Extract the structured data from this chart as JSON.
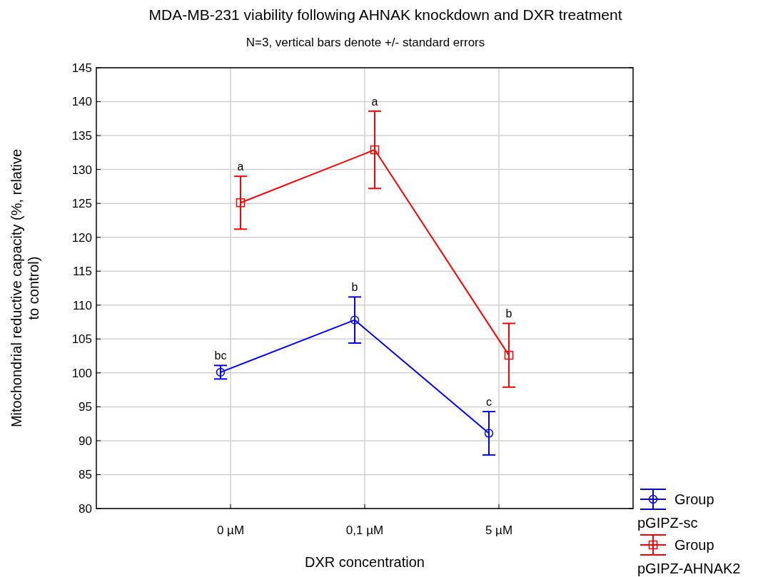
{
  "chart_data": {
    "type": "line",
    "title": "MDA-MB-231 viability following AHNAK knockdown and DXR treatment",
    "subtitle": "N=3, vertical bars denote +/- standard errors",
    "xlabel": "DXR concentration",
    "ylabel": "Mitochondrial reductive capacity (%, relative to control)",
    "categories": [
      "0 µM",
      "0,1 µM",
      "5 µM"
    ],
    "series": [
      {
        "name": "Group pGIPZ-sc",
        "color": "#0000ff",
        "marker": "circle",
        "values": [
          100.1,
          107.8,
          91.1
        ],
        "errors": [
          1.0,
          3.4,
          3.2
        ]
      },
      {
        "name": "Group pGIPZ-AHNAK2",
        "color": "#ff0000",
        "marker": "square",
        "values": [
          125.1,
          132.9,
          102.6
        ],
        "errors": [
          3.9,
          5.7,
          4.7
        ]
      }
    ],
    "ylim": [
      80,
      145
    ],
    "yticks": [
      80,
      85,
      90,
      95,
      100,
      105,
      110,
      115,
      120,
      125,
      130,
      135,
      140,
      145
    ],
    "grid": true,
    "legend": "bottom right",
    "annotations": [
      "bc",
      "b",
      "c",
      "a",
      "a",
      "b"
    ]
  }
}
